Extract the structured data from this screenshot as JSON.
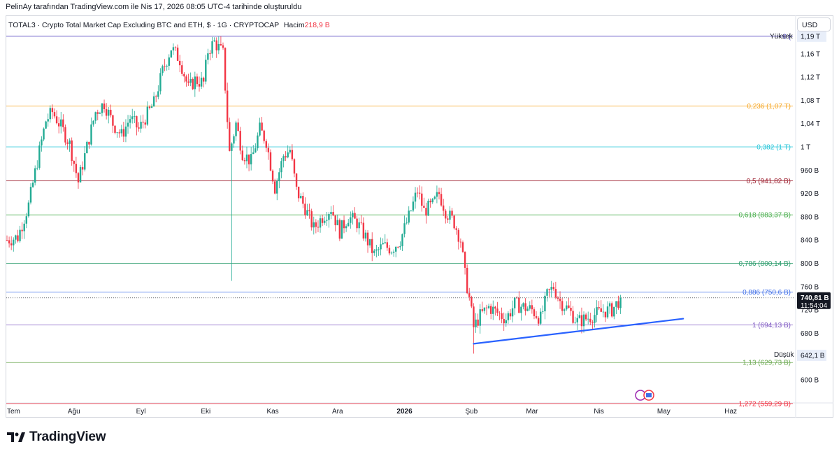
{
  "header": {
    "snapshot_note": "PelinAy tarafından TradingView.com ile Nis 17, 2026 08:05 UTC-4 tarihinde oluşturuldu"
  },
  "legend": {
    "symbol": "TOTAL3 · Crypto Total Market Cap Excluding BTC and ETH, $ · 1G · CRYPTOCAP",
    "volume_label": "Hacim",
    "volume_value": "218,9 B"
  },
  "currency": "USD",
  "brand": {
    "name": "TradingView"
  },
  "colors": {
    "up": "#22ab94",
    "down": "#f23645",
    "trendline": "#2962ff",
    "fib_0": "#5b4fc4",
    "fib_236": "#f6a623",
    "fib_382": "#26c6da",
    "fib_5": "#9c1c2c",
    "fib_618": "#4caf50",
    "fib_786": "#2e9e6e",
    "fib_886": "#3f6ee8",
    "fib_1": "#7e57c2",
    "fib_113": "#6aa84f",
    "fib_1272": "#f23645"
  },
  "chart_data": {
    "type": "candlestick",
    "title": "TOTAL3 · Crypto Total Market Cap Excluding BTC and ETH",
    "y_unit": "USD",
    "y_range": [
      560,
      1200
    ],
    "y_ticks": [
      {
        "v": 600,
        "label": "600 B"
      },
      {
        "v": 642.1,
        "label": "642,1 B"
      },
      {
        "v": 680,
        "label": "680 B"
      },
      {
        "v": 720,
        "label": "720 B"
      },
      {
        "v": 760,
        "label": "760 B"
      },
      {
        "v": 800,
        "label": "800 B"
      },
      {
        "v": 840,
        "label": "840 B"
      },
      {
        "v": 880,
        "label": "880 B"
      },
      {
        "v": 920,
        "label": "920 B"
      },
      {
        "v": 960,
        "label": "960 B"
      },
      {
        "v": 1000,
        "label": "1 T"
      },
      {
        "v": 1040,
        "label": "1,04 T"
      },
      {
        "v": 1080,
        "label": "1,08 T"
      },
      {
        "v": 1120,
        "label": "1,12 T"
      },
      {
        "v": 1160,
        "label": "1,16 T"
      },
      {
        "v": 1190,
        "label": "1,19 T"
      }
    ],
    "x_ticks": [
      {
        "day": 0,
        "label": "Tem"
      },
      {
        "day": 31,
        "label": "Ağu"
      },
      {
        "day": 62,
        "label": "Eyl"
      },
      {
        "day": 92,
        "label": "Eki"
      },
      {
        "day": 123,
        "label": "Kas"
      },
      {
        "day": 153,
        "label": "Ara"
      },
      {
        "day": 184,
        "label": "2026"
      },
      {
        "day": 215,
        "label": "Şub"
      },
      {
        "day": 243,
        "label": "Mar"
      },
      {
        "day": 274,
        "label": "Nis"
      },
      {
        "day": 304,
        "label": "May"
      },
      {
        "day": 335,
        "label": "Haz"
      }
    ],
    "x_range_days": [
      0,
      352
    ],
    "fib_levels": [
      {
        "ratio": "0",
        "value": 1190,
        "label": "0 (",
        "color_key": "fib_0"
      },
      {
        "ratio": "0.236",
        "value": 1070,
        "label": "0,236 (1,07 T)",
        "color_key": "fib_236"
      },
      {
        "ratio": "0.382",
        "value": 1000,
        "label": "0,382 (1 T)",
        "color_key": "fib_382"
      },
      {
        "ratio": "0.5",
        "value": 941.82,
        "label": "0,5 (941,82 B)",
        "color_key": "fib_5"
      },
      {
        "ratio": "0.618",
        "value": 883.37,
        "label": "0,618 (883,37 B)",
        "color_key": "fib_618"
      },
      {
        "ratio": "0.786",
        "value": 800.14,
        "label": "0,786 (800,14 B)",
        "color_key": "fib_786"
      },
      {
        "ratio": "0.886",
        "value": 750.6,
        "label": "0,886 (750,6 B)",
        "color_key": "fib_886"
      },
      {
        "ratio": "1",
        "value": 694.13,
        "label": "1 (694,13 B)",
        "color_key": "fib_1"
      },
      {
        "ratio": "1.13",
        "value": 629.73,
        "label": "1,13 (629,73 B)",
        "color_key": "fib_113"
      },
      {
        "ratio": "1.272",
        "value": 559.29,
        "label": "1,272 (559,29 B)",
        "color_key": "fib_1272"
      }
    ],
    "high_label": "Yüksek",
    "low_label": "Düşük",
    "last_price": {
      "value": 740.81,
      "label": "740,81 B",
      "countdown": "11:54:04"
    },
    "trendline": {
      "from": {
        "day": 216,
        "value": 662
      },
      "to": {
        "day": 313,
        "value": 705
      }
    },
    "price_path": [
      [
        0,
        840
      ],
      [
        5,
        845
      ],
      [
        10,
        900
      ],
      [
        14,
        975
      ],
      [
        18,
        1045
      ],
      [
        21,
        1060
      ],
      [
        25,
        1035
      ],
      [
        29,
        1005
      ],
      [
        33,
        940
      ],
      [
        37,
        1000
      ],
      [
        41,
        1060
      ],
      [
        45,
        1075
      ],
      [
        49,
        1040
      ],
      [
        53,
        1020
      ],
      [
        57,
        1050
      ],
      [
        61,
        1030
      ],
      [
        64,
        1050
      ],
      [
        68,
        1075
      ],
      [
        72,
        1130
      ],
      [
        76,
        1170
      ],
      [
        80,
        1150
      ],
      [
        84,
        1100
      ],
      [
        87,
        1115
      ],
      [
        91,
        1110
      ],
      [
        93,
        1165
      ],
      [
        96,
        1180
      ],
      [
        100,
        1160
      ],
      [
        103,
        990
      ],
      [
        106,
        1040
      ],
      [
        109,
        990
      ],
      [
        113,
        975
      ],
      [
        117,
        1030
      ],
      [
        120,
        1010
      ],
      [
        124,
        930
      ],
      [
        128,
        985
      ],
      [
        131,
        995
      ],
      [
        134,
        925
      ],
      [
        138,
        895
      ],
      [
        142,
        860
      ],
      [
        146,
        880
      ],
      [
        150,
        895
      ],
      [
        154,
        855
      ],
      [
        158,
        880
      ],
      [
        162,
        870
      ],
      [
        166,
        845
      ],
      [
        170,
        815
      ],
      [
        174,
        830
      ],
      [
        178,
        825
      ],
      [
        182,
        840
      ],
      [
        186,
        880
      ],
      [
        190,
        925
      ],
      [
        193,
        890
      ],
      [
        197,
        900
      ],
      [
        200,
        920
      ],
      [
        203,
        890
      ],
      [
        207,
        870
      ],
      [
        210,
        840
      ],
      [
        212,
        780
      ],
      [
        214,
        740
      ],
      [
        216,
        690
      ],
      [
        219,
        710
      ],
      [
        223,
        725
      ],
      [
        227,
        715
      ],
      [
        231,
        705
      ],
      [
        235,
        730
      ],
      [
        239,
        725
      ],
      [
        243,
        720
      ],
      [
        247,
        705
      ],
      [
        250,
        745
      ],
      [
        253,
        760
      ],
      [
        256,
        735
      ],
      [
        260,
        720
      ],
      [
        264,
        700
      ],
      [
        268,
        705
      ],
      [
        272,
        712
      ],
      [
        276,
        718
      ],
      [
        280,
        720
      ],
      [
        284,
        740
      ]
    ]
  }
}
